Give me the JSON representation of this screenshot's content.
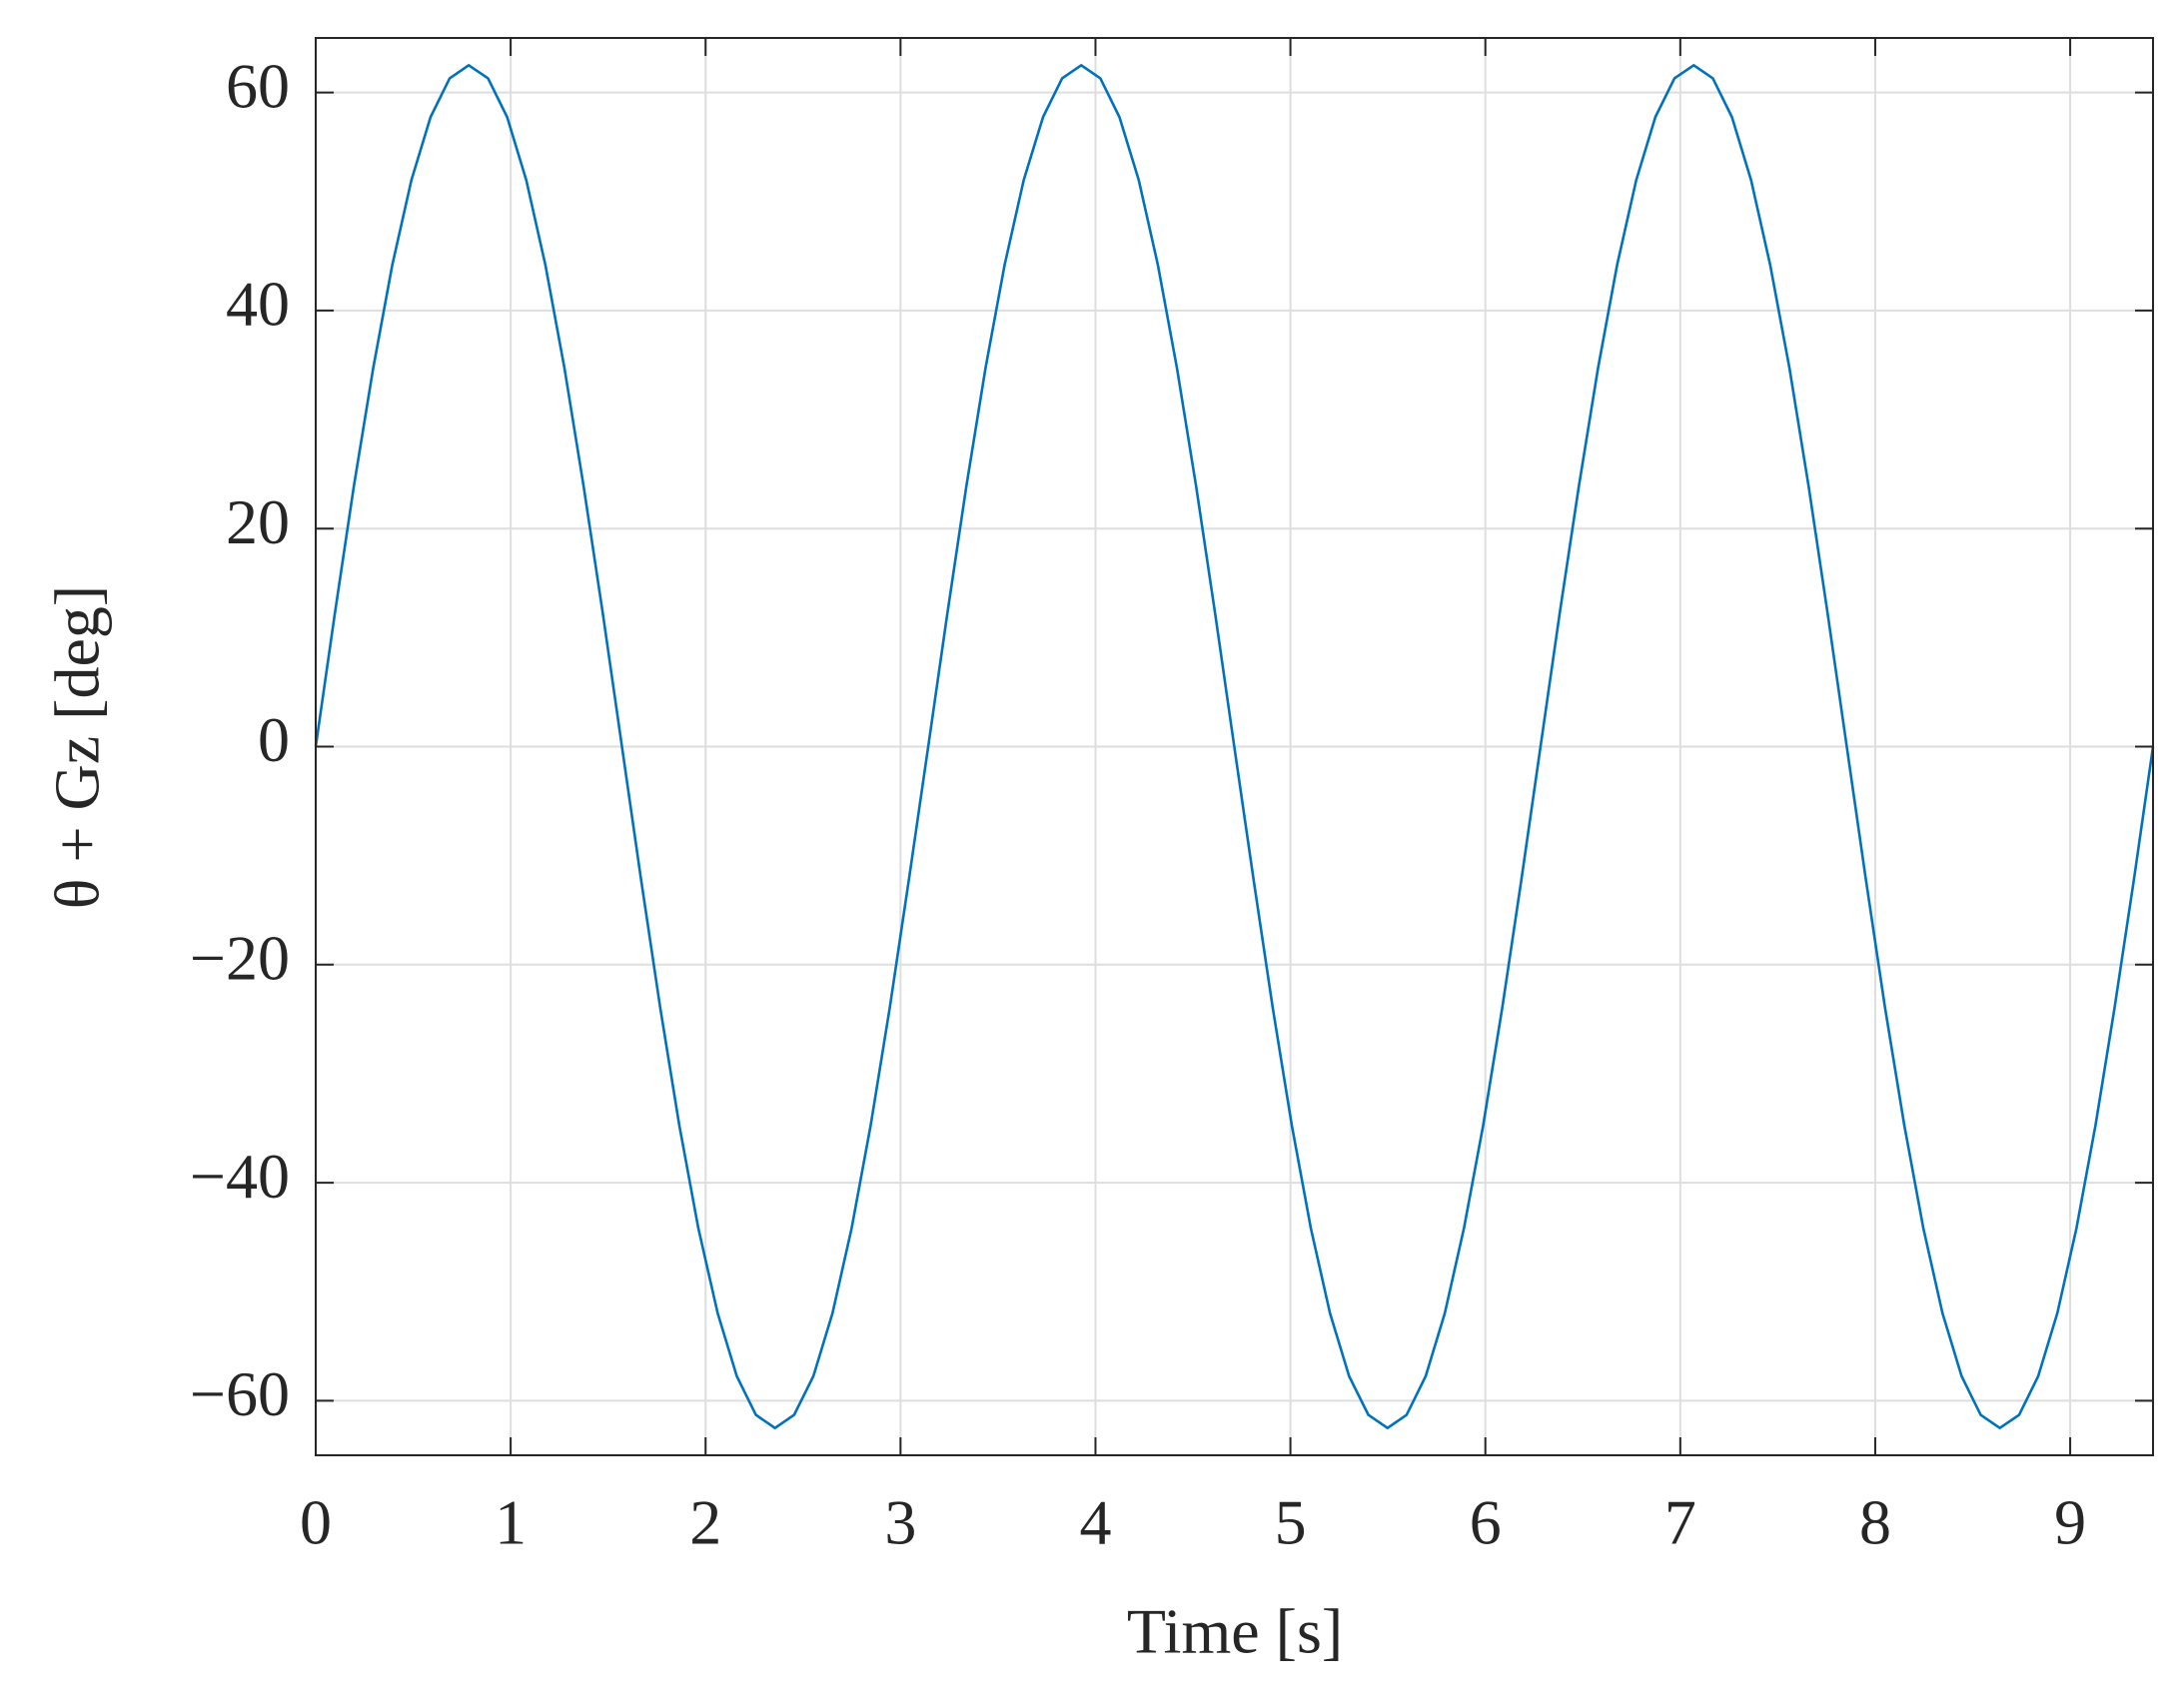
{
  "chart_data": {
    "type": "line",
    "xlabel": "Time [s]",
    "ylabel": "θ + Gz [deg]",
    "xlim": [
      0,
      9.425
    ],
    "ylim": [
      -65,
      65
    ],
    "xticks": [
      0,
      1,
      2,
      3,
      4,
      5,
      6,
      7,
      8,
      9
    ],
    "yticks": [
      {
        "value": -60,
        "label": "−60"
      },
      {
        "value": -40,
        "label": "−40"
      },
      {
        "value": -20,
        "label": "−20"
      },
      0,
      20,
      40,
      60
    ],
    "grid": true,
    "x": [
      0,
      0.098,
      0.196,
      0.295,
      0.393,
      0.491,
      0.589,
      0.687,
      0.785,
      0.884,
      0.982,
      1.08,
      1.178,
      1.276,
      1.374,
      1.473,
      1.571,
      1.669,
      1.767,
      1.865,
      1.963,
      2.062,
      2.16,
      2.258,
      2.356,
      2.454,
      2.553,
      2.651,
      2.749,
      2.847,
      2.945,
      3.043,
      3.142,
      3.24,
      3.338,
      3.436,
      3.534,
      3.632,
      3.731,
      3.829,
      3.927,
      4.025,
      4.123,
      4.222,
      4.32,
      4.418,
      4.516,
      4.614,
      4.712,
      4.811,
      4.909,
      5.007,
      5.105,
      5.203,
      5.301,
      5.4,
      5.498,
      5.596,
      5.694,
      5.792,
      5.89,
      5.989,
      6.087,
      6.185,
      6.283,
      6.381,
      6.48,
      6.578,
      6.676,
      6.774,
      6.872,
      6.97,
      7.069,
      7.167,
      7.265,
      7.363,
      7.461,
      7.56,
      7.658,
      7.756,
      7.854,
      7.952,
      8.05,
      8.149,
      8.247,
      8.345,
      8.443,
      8.541,
      8.639,
      8.738,
      8.836,
      8.934,
      9.032,
      9.13,
      9.228,
      9.327,
      9.425
    ],
    "series": [
      {
        "color": "#0072bd",
        "values": [
          0,
          12.19,
          23.92,
          34.72,
          44.19,
          51.97,
          57.74,
          61.3,
          62.5,
          61.3,
          57.74,
          51.97,
          44.19,
          34.72,
          23.92,
          12.19,
          0,
          -12.19,
          -23.92,
          -34.72,
          -44.19,
          -51.97,
          -57.74,
          -61.3,
          -62.5,
          -61.3,
          -57.74,
          -51.97,
          -44.19,
          -34.72,
          -23.92,
          -12.19,
          0,
          12.19,
          23.92,
          34.72,
          44.19,
          51.97,
          57.74,
          61.3,
          62.5,
          61.3,
          57.74,
          51.97,
          44.19,
          34.72,
          23.92,
          12.19,
          0,
          -12.19,
          -23.92,
          -34.72,
          -44.19,
          -51.97,
          -57.74,
          -61.3,
          -62.5,
          -61.3,
          -57.74,
          -51.97,
          -44.19,
          -34.72,
          -23.92,
          -12.19,
          0,
          12.19,
          23.92,
          34.72,
          44.19,
          51.97,
          57.74,
          61.3,
          62.5,
          61.3,
          57.74,
          51.97,
          44.19,
          34.72,
          23.92,
          12.19,
          0,
          -12.19,
          -23.92,
          -34.72,
          -44.19,
          -51.97,
          -57.74,
          -61.3,
          -62.5,
          -61.3,
          -57.74,
          -51.97,
          -44.19,
          -34.72,
          -23.92,
          -12.19,
          0
        ]
      }
    ]
  }
}
